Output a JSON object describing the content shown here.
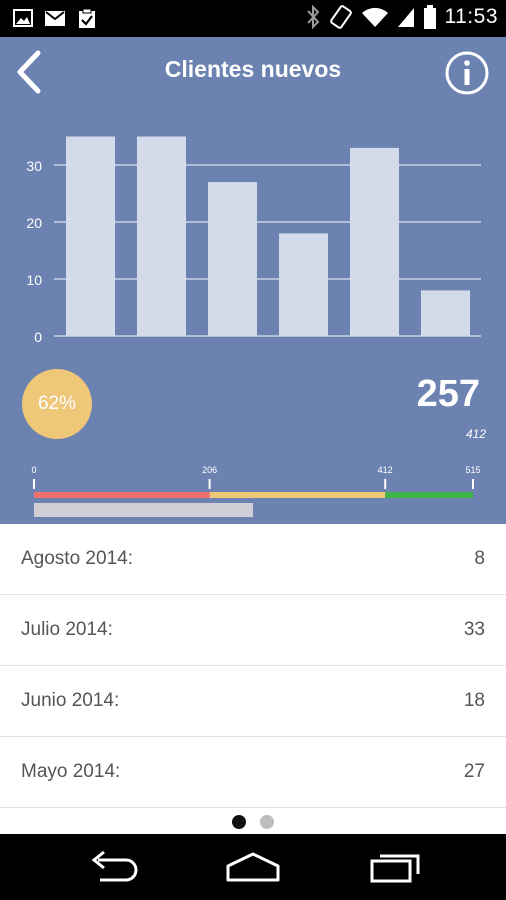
{
  "status_bar": {
    "time": "11:53",
    "left_icons": [
      "image-icon",
      "gmail-icon",
      "clipboard-check-icon"
    ],
    "right_icons": [
      "bluetooth-icon",
      "rotate-icon",
      "wifi-icon",
      "signal-icon",
      "battery-icon"
    ]
  },
  "header": {
    "title": "Clientes nuevos",
    "back_icon": "back-chevron-icon",
    "info_icon": "info-icon"
  },
  "chart_data": {
    "type": "bar",
    "values": [
      35,
      35,
      27,
      18,
      33,
      8
    ],
    "y_ticks": [
      "0",
      "10",
      "20",
      "30"
    ],
    "ylim": [
      0,
      35
    ],
    "grid": true,
    "bar_color": "#d3dbeb",
    "title": "",
    "xlabel": "",
    "ylabel": ""
  },
  "summary": {
    "percent": "62%",
    "value": "257",
    "target": "412"
  },
  "scale": {
    "ticks": [
      "0",
      "206",
      "412",
      "515"
    ],
    "max": 515,
    "current": 257,
    "colors": {
      "red": "#ef6f6c",
      "yellow": "#eec779",
      "green": "#3fb549",
      "progress": "#d0cfd6"
    }
  },
  "list": {
    "items": [
      {
        "label": "Agosto 2014:",
        "value": "8"
      },
      {
        "label": "Julio 2014:",
        "value": "33"
      },
      {
        "label": "Junio 2014:",
        "value": "18"
      },
      {
        "label": "Mayo 2014:",
        "value": "27"
      }
    ]
  },
  "pager": {
    "pages": 2,
    "active": 0
  },
  "nav": {
    "icons": [
      "back-nav-icon",
      "home-nav-icon",
      "recents-nav-icon"
    ]
  },
  "colors": {
    "panel": "#6c82b1",
    "badge": "#eec779"
  }
}
